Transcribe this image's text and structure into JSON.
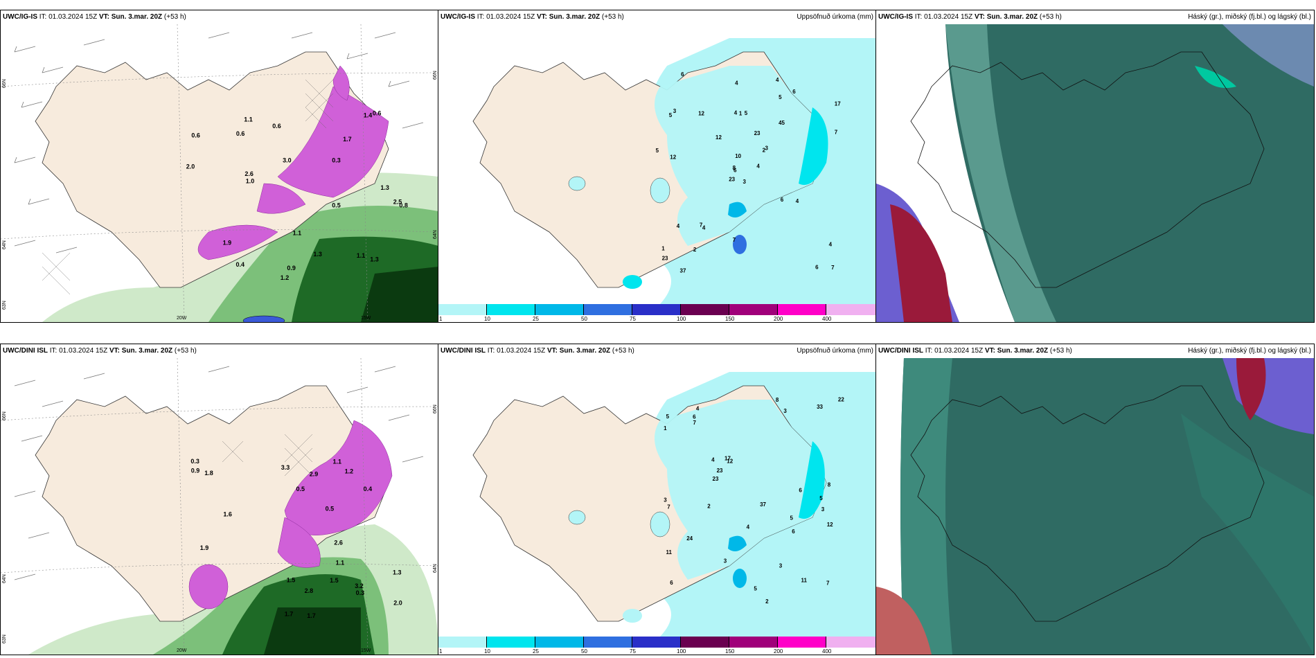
{
  "panels": [
    {
      "model": "UWC/IG-IS",
      "it_label": "IT:",
      "it": "01.03.2024 15Z",
      "vt_label": "VT:",
      "vt": "Sun. 3.mar. 20Z",
      "step": "(+53 h)",
      "right_title": "",
      "lat_labels": [
        "66N",
        "64N",
        "63N"
      ],
      "lon_labels": [
        "20W",
        "15W"
      ],
      "right_lat": [
        "66N",
        "64N"
      ]
    },
    {
      "model": "UWC/IG-IS",
      "it_label": "IT:",
      "it": "01.03.2024 15Z",
      "vt_label": "VT:",
      "vt": "Sun. 3.mar. 20Z",
      "step": "(+53 h)",
      "right_title": "Uppsöfnuð úrkoma (mm)"
    },
    {
      "model": "UWC/IG-IS",
      "it_label": "IT:",
      "it": "01.03.2024 15Z",
      "vt_label": "VT:",
      "vt": "Sun. 3.mar. 20Z",
      "step": "(+53 h)",
      "right_title": "Háský (gr.), miðský (fj.bl.) og lágský (bl.)"
    },
    {
      "model": "UWC/DINI ISL",
      "it_label": "IT:",
      "it": "01.03.2024 15Z",
      "vt_label": "VT:",
      "vt": "Sun. 3.mar. 20Z",
      "step": "(+53 h)",
      "right_title": "",
      "lat_labels": [
        "66N",
        "64N",
        "63N"
      ],
      "lon_labels": [
        "20W",
        "15W"
      ],
      "right_lat": [
        "66N",
        "64N"
      ]
    },
    {
      "model": "UWC/DINI ISL",
      "it_label": "IT:",
      "it": "01.03.2024 15Z",
      "vt_label": "VT:",
      "vt": "Sun. 3.mar. 20Z",
      "step": "(+53 h)",
      "right_title": "Uppsöfnuð úrkoma (mm)"
    },
    {
      "model": "UWC/DINI ISL",
      "it_label": "IT:",
      "it": "01.03.2024 15Z",
      "vt_label": "VT:",
      "vt": "Sun. 3.mar. 20Z",
      "step": "(+53 h)",
      "right_title": "Háský (gr.), miðský (fj.bl.) og lágský (bl.)"
    }
  ],
  "colorbar": {
    "labels": [
      "1",
      "10",
      "25",
      "50",
      "75",
      "100",
      "150",
      "200",
      "400"
    ],
    "colors": [
      "#b3f5f7",
      "#00e5ee",
      "#00b8e8",
      "#2f6fe0",
      "#2a2fc8",
      "#6a0050",
      "#a0007a",
      "#ff00c8",
      "#f0b0f0"
    ]
  },
  "precip_numbers_top": [
    "3",
    "5",
    "6",
    "1",
    "2",
    "4",
    "4",
    "5",
    "5",
    "4",
    "6",
    "7",
    "12",
    "17",
    "23",
    "45",
    "37",
    "4",
    "23",
    "4",
    "12",
    "23",
    "2",
    "1",
    "3",
    "4",
    "3",
    "4",
    "5",
    "6",
    "7",
    "8",
    "7",
    "10",
    "12",
    "6",
    "7",
    "6",
    "4"
  ],
  "precip_numbers_bottom": [
    "5",
    "3",
    "6",
    "4",
    "12",
    "11",
    "11",
    "3",
    "4",
    "2",
    "1",
    "3",
    "5",
    "7",
    "3",
    "8",
    "4",
    "37",
    "17",
    "24",
    "22",
    "33",
    "23",
    "12",
    "8",
    "6",
    "6",
    "7",
    "7",
    "6",
    "5",
    "3",
    "23",
    "2",
    "5"
  ],
  "rain_labels_top": [
    "0.6",
    "0.6",
    "0.3",
    "0.9",
    "1.4",
    "1.2",
    "0.5",
    "1.0",
    "0.6",
    "0.8",
    "2.5",
    "1.1",
    "1.7",
    "1.9",
    "2.0",
    "0.4",
    "2.6",
    "0.6",
    "1.3",
    "1.3",
    "1.1",
    "1.3",
    "3.0",
    "1.1"
  ],
  "rain_labels_bottom": [
    "0.5",
    "0.3",
    "0.3",
    "0.4",
    "1.7",
    "3.3",
    "1.7",
    "1.1",
    "1.6",
    "1.9",
    "3.2",
    "2.9",
    "2.6",
    "1.8",
    "2.0",
    "1.2",
    "1.3",
    "1.5",
    "2.8",
    "1.1",
    "0.9",
    "1.5",
    "0.5"
  ],
  "colors": {
    "land": "#f7ebdd",
    "ocean_white": "#ffffff",
    "precip_light": "#b3f5f7",
    "cloud_teal": "#2f6b63",
    "cloud_mid": "#2e7a6e",
    "cloud_blue": "#6c5fd0",
    "cloud_red": "#9a1a3a"
  }
}
